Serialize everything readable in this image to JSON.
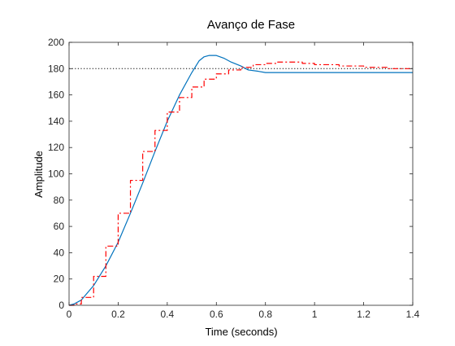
{
  "chart_data": {
    "type": "line",
    "title": "Avanço de Fase",
    "xlabel": "Time (seconds)",
    "ylabel": "Amplitude",
    "xlim": [
      0,
      1.4
    ],
    "ylim": [
      0,
      200
    ],
    "x_ticks": [
      0,
      0.2,
      0.4,
      0.6,
      0.8,
      1,
      1.2,
      1.4
    ],
    "x_tick_labels": [
      "0",
      "0.2",
      "0.4",
      "0.6",
      "0.8",
      "1",
      "1.2",
      "1.4"
    ],
    "y_ticks": [
      0,
      20,
      40,
      60,
      80,
      100,
      120,
      140,
      160,
      180,
      200
    ],
    "y_tick_labels": [
      "0",
      "20",
      "40",
      "60",
      "80",
      "100",
      "120",
      "140",
      "160",
      "180",
      "200"
    ],
    "grid": false,
    "reference_line": {
      "y": 180,
      "style": "dotted",
      "color": "#000000"
    },
    "series": [
      {
        "style": "solid",
        "color": "#0072BD",
        "x": [
          0,
          0.02,
          0.05,
          0.1,
          0.15,
          0.2,
          0.25,
          0.3,
          0.35,
          0.4,
          0.45,
          0.5,
          0.53,
          0.55,
          0.57,
          0.6,
          0.63,
          0.66,
          0.7,
          0.73,
          0.77,
          0.8,
          0.9,
          1.0,
          1.2,
          1.4
        ],
        "y": [
          0,
          1,
          4,
          15,
          30,
          48,
          70,
          93,
          117,
          140,
          160,
          177,
          186,
          189,
          190,
          190,
          188,
          185,
          182,
          179,
          178,
          177,
          177,
          177,
          177,
          177
        ]
      },
      {
        "style": "dash-dot-step",
        "color": "#ff0000",
        "x": [
          0,
          0.02,
          0.05,
          0.1,
          0.15,
          0.2,
          0.25,
          0.3,
          0.35,
          0.4,
          0.45,
          0.5,
          0.55,
          0.6,
          0.65,
          0.7,
          0.75,
          0.8,
          0.85,
          0.9,
          0.95,
          1.0,
          1.1,
          1.2,
          1.3,
          1.4
        ],
        "y": [
          0,
          1,
          6,
          22,
          45,
          70,
          95,
          117,
          133,
          147,
          158,
          166,
          172,
          176,
          179,
          181,
          183,
          184,
          185,
          185,
          184,
          183,
          182,
          181,
          180,
          180
        ]
      }
    ]
  }
}
